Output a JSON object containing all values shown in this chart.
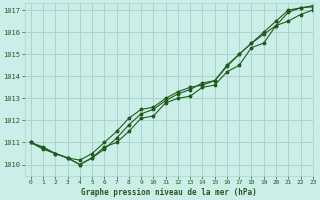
{
  "title": "Graphe pression niveau de la mer (hPa)",
  "bg_color": "#cceee8",
  "grid_color": "#aad4ce",
  "line_color": "#1e5c1e",
  "xlim": [
    -0.5,
    23
  ],
  "ylim": [
    1009.5,
    1017.3
  ],
  "yticks": [
    1010,
    1011,
    1012,
    1013,
    1014,
    1015,
    1016,
    1017
  ],
  "xticks": [
    0,
    1,
    2,
    3,
    4,
    5,
    6,
    7,
    8,
    9,
    10,
    11,
    12,
    13,
    14,
    15,
    16,
    17,
    18,
    19,
    20,
    21,
    22,
    23
  ],
  "series": [
    [
      1011.0,
      1010.8,
      1010.5,
      1010.3,
      1010.0,
      1010.3,
      1010.8,
      1011.0,
      1011.5,
      1012.1,
      1012.2,
      1012.8,
      1013.0,
      1013.1,
      1013.5,
      1013.6,
      1014.2,
      1014.5,
      1015.3,
      1015.5,
      1016.3,
      1016.5,
      1016.8,
      1017.0
    ],
    [
      1011.0,
      1010.7,
      1010.5,
      1010.3,
      1010.0,
      1010.3,
      1010.7,
      1011.2,
      1011.8,
      1012.3,
      1012.5,
      1012.9,
      1013.2,
      1013.4,
      1013.7,
      1013.8,
      1014.5,
      1015.0,
      1015.5,
      1015.9,
      1016.3,
      1016.9,
      1017.1,
      1017.15
    ],
    [
      1011.0,
      1010.75,
      1010.5,
      1010.3,
      1010.2,
      1010.5,
      1011.0,
      1011.5,
      1012.1,
      1012.5,
      1012.6,
      1013.0,
      1013.3,
      1013.5,
      1013.6,
      1013.8,
      1014.45,
      1015.0,
      1015.5,
      1016.0,
      1016.5,
      1017.0,
      1017.1,
      1017.2
    ]
  ]
}
